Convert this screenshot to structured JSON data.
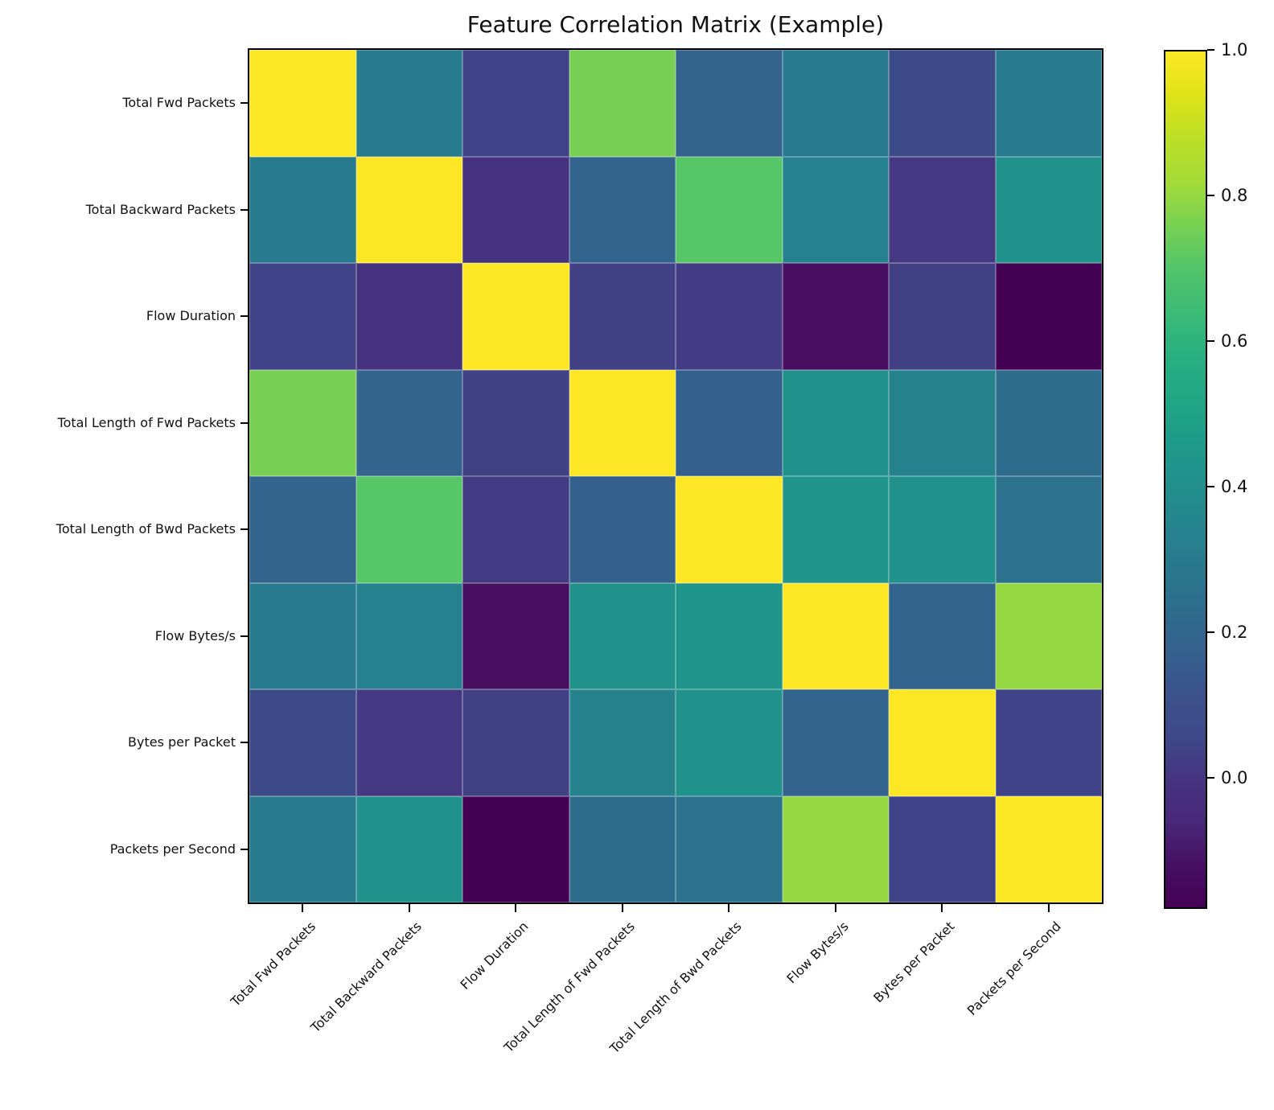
{
  "figure": {
    "background": "#ffffff",
    "text_color": "#111111"
  },
  "chart_data": {
    "type": "heatmap",
    "title": "Feature Correlation Matrix (Example)",
    "features": [
      "Total Fwd Packets",
      "Total Backward Packets",
      "Flow Duration",
      "Total Length of Fwd Packets",
      "Total Length of Bwd Packets",
      "Flow Bytes/s",
      "Bytes per Packet",
      "Packets per Second"
    ],
    "matrix": [
      [
        1.0,
        0.3,
        0.04,
        0.76,
        0.19,
        0.3,
        0.07,
        0.3
      ],
      [
        0.3,
        1.0,
        -0.01,
        0.19,
        0.71,
        0.33,
        0.01,
        0.41
      ],
      [
        0.04,
        -0.01,
        1.0,
        0.03,
        0.02,
        -0.13,
        0.03,
        -0.18
      ],
      [
        0.76,
        0.19,
        0.03,
        1.0,
        0.17,
        0.41,
        0.34,
        0.23
      ],
      [
        0.19,
        0.71,
        0.02,
        0.17,
        1.0,
        0.43,
        0.41,
        0.26
      ],
      [
        0.3,
        0.33,
        -0.13,
        0.41,
        0.43,
        1.0,
        0.19,
        0.8
      ],
      [
        0.07,
        0.01,
        0.03,
        0.34,
        0.41,
        0.19,
        1.0,
        0.04
      ],
      [
        0.3,
        0.41,
        -0.18,
        0.23,
        0.26,
        0.8,
        0.04,
        1.0
      ]
    ],
    "vmin": -0.18,
    "vmax": 1.0,
    "grid": true,
    "x_tick_rotation_deg": 45,
    "legend_position": "colorbar-right",
    "colorbar": {
      "tick_labels": [
        "1.0",
        "0.8",
        "0.6",
        "0.4",
        "0.2",
        "0.0"
      ],
      "tick_values": [
        1.0,
        0.8,
        0.6,
        0.4,
        0.2,
        0.0
      ]
    },
    "colormap": {
      "name": "viridis",
      "stops": [
        "#440154",
        "#471063",
        "#482878",
        "#463480",
        "#3e4989",
        "#3b528b",
        "#34618d",
        "#2e6d8e",
        "#29798e",
        "#25858e",
        "#21918c",
        "#1e9c89",
        "#22a884",
        "#2ab07f",
        "#3dbc74",
        "#54c568",
        "#7ad151",
        "#a5db36",
        "#bddf26",
        "#dfe318",
        "#fde725"
      ]
    }
  }
}
